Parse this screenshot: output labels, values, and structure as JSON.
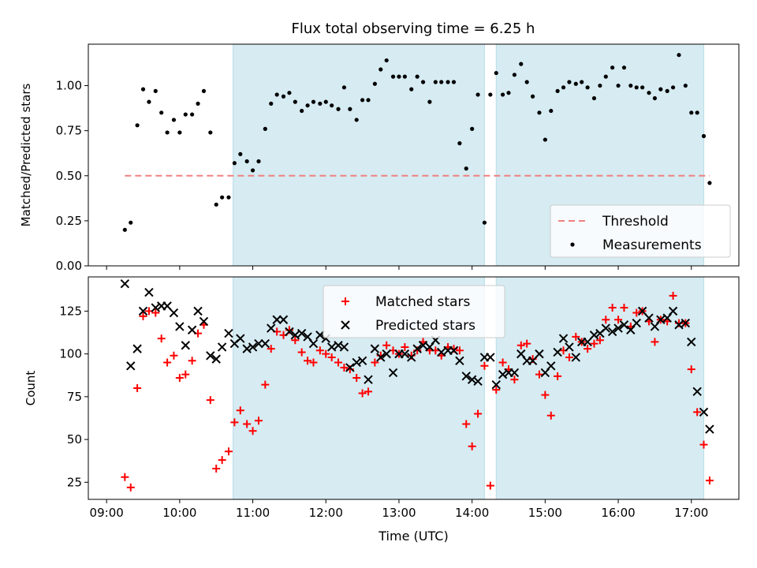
{
  "title": "Flux total observing time = 6.25 h",
  "colors": {
    "shade": "#add8e6",
    "threshold": "#f08080",
    "matched": "#ff0000",
    "predicted": "#000000",
    "measurement": "#000000"
  },
  "chart_data": [
    {
      "type": "scatter",
      "ylabel": "Matched/Predicted stars",
      "xlim": [
        8.75,
        17.65
      ],
      "ylim": [
        0.0,
        1.23
      ],
      "yticks": [
        0.0,
        0.25,
        0.5,
        0.75,
        1.0
      ],
      "ytick_labels": [
        "0.00",
        "0.25",
        "0.50",
        "0.75",
        "1.00"
      ],
      "shaded_intervals": [
        [
          10.73,
          14.17
        ],
        [
          14.33,
          17.17
        ]
      ],
      "threshold": {
        "name": "Threshold",
        "y": 0.5,
        "x": [
          9.25,
          17.25
        ]
      },
      "legend": {
        "location": "lower right",
        "entries": [
          "Threshold",
          "Measurements"
        ]
      },
      "series": [
        {
          "name": "Measurements",
          "marker": "dot",
          "x": [
            9.25,
            9.33,
            9.42,
            9.5,
            9.58,
            9.67,
            9.75,
            9.83,
            9.92,
            10.0,
            10.08,
            10.17,
            10.25,
            10.33,
            10.42,
            10.5,
            10.58,
            10.67,
            10.75,
            10.83,
            10.92,
            11.0,
            11.08,
            11.17,
            11.25,
            11.33,
            11.42,
            11.5,
            11.58,
            11.67,
            11.75,
            11.83,
            11.92,
            12.0,
            12.08,
            12.17,
            12.25,
            12.33,
            12.42,
            12.5,
            12.58,
            12.67,
            12.75,
            12.83,
            12.92,
            13.0,
            13.08,
            13.17,
            13.25,
            13.33,
            13.42,
            13.5,
            13.58,
            13.67,
            13.75,
            13.83,
            13.92,
            14.0,
            14.08,
            14.17,
            14.25,
            14.33,
            14.42,
            14.5,
            14.58,
            14.67,
            14.75,
            14.83,
            14.92,
            15.0,
            15.08,
            15.17,
            15.25,
            15.33,
            15.42,
            15.5,
            15.58,
            15.67,
            15.75,
            15.83,
            15.92,
            16.0,
            16.08,
            16.17,
            16.25,
            16.33,
            16.42,
            16.5,
            16.58,
            16.67,
            16.75,
            16.83,
            16.92,
            17.0,
            17.08,
            17.17,
            17.25
          ],
          "y": [
            0.2,
            0.24,
            0.78,
            0.98,
            0.91,
            0.97,
            0.85,
            0.74,
            0.81,
            0.74,
            0.84,
            0.84,
            0.9,
            0.97,
            0.74,
            0.34,
            0.38,
            0.38,
            0.57,
            0.62,
            0.58,
            0.53,
            0.58,
            0.76,
            0.9,
            0.95,
            0.94,
            0.96,
            0.91,
            0.86,
            0.89,
            0.91,
            0.9,
            0.91,
            0.89,
            0.87,
            0.99,
            0.87,
            0.81,
            0.92,
            0.92,
            1.01,
            1.09,
            1.14,
            1.05,
            1.05,
            1.05,
            0.98,
            1.05,
            1.02,
            0.91,
            1.02,
            1.02,
            1.02,
            1.02,
            0.68,
            0.54,
            0.76,
            0.95,
            0.24,
            0.95,
            1.07,
            0.95,
            0.96,
            1.06,
            1.12,
            1.02,
            0.94,
            0.85,
            0.7,
            0.86,
            0.97,
            0.99,
            1.02,
            1.01,
            1.02,
            0.99,
            0.93,
            1.0,
            1.05,
            1.1,
            1.0,
            1.1,
            1.0,
            0.99,
            0.99,
            0.96,
            0.93,
            0.98,
            0.97,
            0.99,
            1.17,
            1.0,
            0.85,
            0.85,
            0.72,
            0.46
          ]
        }
      ]
    },
    {
      "type": "scatter",
      "xlabel": "Time (UTC)",
      "ylabel": "Count",
      "xlim": [
        8.75,
        17.65
      ],
      "ylim": [
        15,
        145
      ],
      "yticks": [
        25,
        50,
        75,
        100,
        125
      ],
      "ytick_labels": [
        "25",
        "50",
        "75",
        "100",
        "125"
      ],
      "xticks": [
        9,
        10,
        11,
        12,
        13,
        14,
        15,
        16,
        17
      ],
      "xtick_labels": [
        "09:00",
        "10:00",
        "11:00",
        "12:00",
        "13:00",
        "14:00",
        "15:00",
        "16:00",
        "17:00"
      ],
      "shaded_intervals": [
        [
          10.73,
          14.17
        ],
        [
          14.33,
          17.17
        ]
      ],
      "legend": {
        "location": "upper center",
        "entries": [
          "Matched stars",
          "Predicted stars"
        ]
      },
      "series": [
        {
          "name": "Matched stars",
          "marker": "plus",
          "x": [
            9.25,
            9.33,
            9.42,
            9.5,
            9.58,
            9.67,
            9.75,
            9.83,
            9.92,
            10.0,
            10.08,
            10.17,
            10.25,
            10.33,
            10.42,
            10.5,
            10.58,
            10.67,
            10.75,
            10.83,
            10.92,
            11.0,
            11.08,
            11.17,
            11.25,
            11.33,
            11.42,
            11.5,
            11.58,
            11.67,
            11.75,
            11.83,
            11.92,
            12.0,
            12.08,
            12.17,
            12.25,
            12.33,
            12.42,
            12.5,
            12.58,
            12.67,
            12.75,
            12.83,
            12.92,
            13.0,
            13.08,
            13.17,
            13.25,
            13.33,
            13.42,
            13.5,
            13.58,
            13.67,
            13.75,
            13.83,
            13.92,
            14.0,
            14.08,
            14.17,
            14.25,
            14.33,
            14.42,
            14.5,
            14.58,
            14.67,
            14.75,
            14.83,
            14.92,
            15.0,
            15.08,
            15.17,
            15.25,
            15.33,
            15.42,
            15.5,
            15.58,
            15.67,
            15.75,
            15.83,
            15.92,
            16.0,
            16.08,
            16.17,
            16.25,
            16.33,
            16.42,
            16.5,
            16.58,
            16.67,
            16.75,
            16.83,
            16.92,
            17.0,
            17.08,
            17.17,
            17.25
          ],
          "y": [
            28,
            22,
            80,
            122,
            125,
            124,
            109,
            95,
            99,
            86,
            88,
            96,
            112,
            117,
            73,
            33,
            38,
            43,
            60,
            67,
            59,
            55,
            61,
            82,
            103,
            113,
            111,
            114,
            108,
            101,
            96,
            95,
            102,
            100,
            98,
            95,
            92,
            91,
            86,
            77,
            78,
            95,
            99,
            105,
            102,
            100,
            104,
            99,
            102,
            107,
            102,
            102,
            99,
            104,
            103,
            102,
            59,
            46,
            65,
            93,
            23,
            79,
            95,
            91,
            85,
            105,
            106,
            97,
            88,
            76,
            64,
            87,
            102,
            98,
            110,
            107,
            103,
            106,
            108,
            120,
            127,
            120,
            127,
            116,
            124,
            125,
            119,
            107,
            120,
            119,
            134,
            118,
            118,
            91,
            66,
            47,
            26
          ]
        },
        {
          "name": "Predicted stars",
          "marker": "x",
          "x": [
            9.25,
            9.33,
            9.42,
            9.5,
            9.58,
            9.67,
            9.75,
            9.83,
            9.92,
            10.0,
            10.08,
            10.17,
            10.25,
            10.33,
            10.42,
            10.5,
            10.58,
            10.67,
            10.75,
            10.83,
            10.92,
            11.0,
            11.08,
            11.17,
            11.25,
            11.33,
            11.42,
            11.5,
            11.58,
            11.67,
            11.75,
            11.83,
            11.92,
            12.0,
            12.08,
            12.17,
            12.25,
            12.33,
            12.42,
            12.5,
            12.58,
            12.67,
            12.75,
            12.83,
            12.92,
            13.0,
            13.08,
            13.17,
            13.25,
            13.33,
            13.42,
            13.5,
            13.58,
            13.67,
            13.75,
            13.83,
            13.92,
            14.0,
            14.08,
            14.17,
            14.25,
            14.33,
            14.42,
            14.5,
            14.58,
            14.67,
            14.75,
            14.83,
            14.92,
            15.0,
            15.08,
            15.17,
            15.25,
            15.33,
            15.42,
            15.5,
            15.58,
            15.67,
            15.75,
            15.83,
            15.92,
            16.0,
            16.08,
            16.17,
            16.25,
            16.33,
            16.42,
            16.5,
            16.58,
            16.67,
            16.75,
            16.83,
            16.92,
            17.0,
            17.08,
            17.17,
            17.25
          ],
          "y": [
            141,
            93,
            103,
            125,
            136,
            127,
            128,
            128,
            124,
            116,
            105,
            114,
            125,
            119,
            99,
            97,
            104,
            112,
            106,
            109,
            103,
            104,
            106,
            106,
            115,
            120,
            120,
            113,
            111,
            112,
            110,
            106,
            111,
            109,
            104,
            105,
            104,
            92,
            95,
            96,
            85,
            103,
            98,
            100,
            89,
            100,
            100,
            98,
            103,
            105,
            104,
            108,
            101,
            102,
            102,
            96,
            87,
            85,
            84,
            98,
            98,
            82,
            88,
            89,
            89,
            100,
            96,
            96,
            100,
            89,
            93,
            101,
            109,
            104,
            98,
            107,
            107,
            111,
            112,
            115,
            113,
            115,
            117,
            114,
            118,
            125,
            121,
            116,
            120,
            121,
            125,
            117,
            118,
            107,
            78,
            66,
            56
          ]
        }
      ]
    }
  ]
}
